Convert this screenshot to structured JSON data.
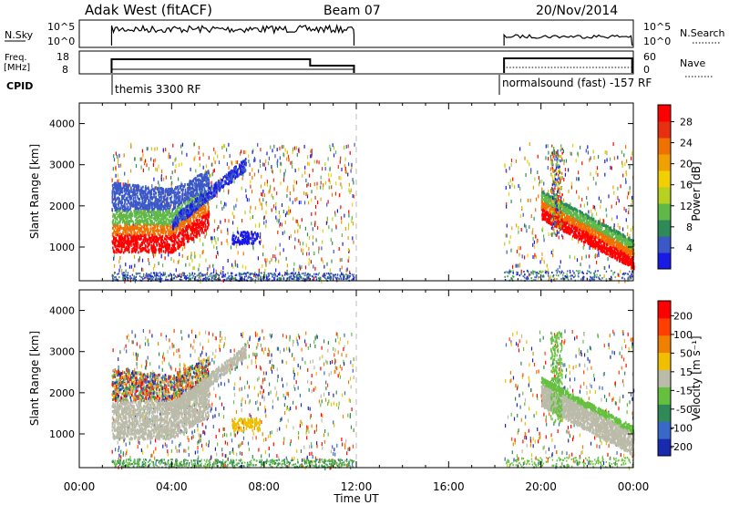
{
  "header": {
    "station": "Adak West (fitACF)",
    "beam": "Beam 07",
    "date": "20/Nov/2014"
  },
  "top_panels": {
    "nsky_label": "N.Sky",
    "nsky_ticks": [
      "10^5",
      "10^0"
    ],
    "nsearch_label": "N.Search",
    "nsearch_ticks": [
      "10^5",
      "10^0"
    ],
    "freq_label_1": "Freq.",
    "freq_label_2": "[MHz]",
    "freq_ticks": [
      "18",
      "8"
    ],
    "nave_label": "Nave",
    "nave_ticks": [
      "60",
      "0"
    ],
    "cpid_label": "CPID",
    "cpid_1": "themis 3300 RF",
    "cpid_2": "normalsound (fast) -157 RF"
  },
  "chart_data": [
    {
      "type": "heatmap",
      "title": "",
      "ylabel": "Slant Range [km]",
      "xlabel": "",
      "x_ticks": [
        "00:00",
        "04:00",
        "08:00",
        "12:00",
        "16:00",
        "20:00",
        "00:00"
      ],
      "y_ticks": [
        "1000",
        "2000",
        "3000",
        "4000"
      ],
      "xlim_hours": [
        0,
        24
      ],
      "ylim_km": [
        180,
        4500
      ],
      "colorbar": {
        "label": "Power [dB]",
        "ticks": [
          "4",
          "8",
          "12",
          "16",
          "20",
          "24",
          "28"
        ],
        "colors": [
          "#1a1ae6",
          "#3a58c8",
          "#2e8b57",
          "#5fb848",
          "#b8d020",
          "#f0d000",
          "#f0a000",
          "#f07000",
          "#e83010",
          "#ff0000"
        ]
      }
    },
    {
      "type": "heatmap",
      "title": "",
      "ylabel": "Slant Range [km]",
      "xlabel": "Time UT",
      "x_ticks": [
        "00:00",
        "04:00",
        "08:00",
        "12:00",
        "16:00",
        "20:00",
        "00:00"
      ],
      "y_ticks": [
        "1000",
        "2000",
        "3000",
        "4000"
      ],
      "xlim_hours": [
        0,
        24
      ],
      "ylim_km": [
        180,
        4500
      ],
      "colorbar": {
        "label": "Velocity [m s⁻¹]",
        "ticks": [
          "200",
          "100",
          "50",
          "15",
          "-15",
          "-50",
          "-100",
          "-200"
        ],
        "colors": [
          "#1a2ab0",
          "#3a68c8",
          "#2e8b57",
          "#66c040",
          "#bbbbaa",
          "#f0c000",
          "#f08000",
          "#ff4000",
          "#ff0000"
        ]
      }
    }
  ]
}
